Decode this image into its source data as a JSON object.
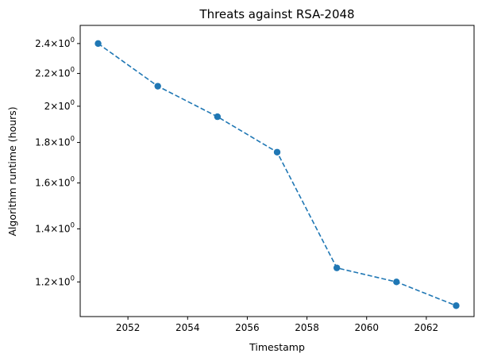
{
  "chart_data": {
    "type": "line",
    "title": "Threats against RSA-2048",
    "xlabel": "Timestamp",
    "ylabel": "Algorithm runtime (hours)",
    "y_scale": "log",
    "grid": false,
    "legend": "none",
    "series": [
      {
        "x": [
          2051,
          2053,
          2055,
          2057,
          2059,
          2061,
          2063
        ],
        "y": [
          2.4,
          2.12,
          1.94,
          1.75,
          1.25,
          1.2,
          1.12
        ],
        "color": "#1f77b4",
        "line_style": "dashed",
        "marker": "circle"
      }
    ],
    "xlim": [
      2050.4,
      2063.6
    ],
    "ylim": [
      1.085,
      2.53
    ],
    "x_ticks": [
      {
        "value": 2052,
        "label": "2052"
      },
      {
        "value": 2054,
        "label": "2054"
      },
      {
        "value": 2056,
        "label": "2056"
      },
      {
        "value": 2058,
        "label": "2058"
      },
      {
        "value": 2060,
        "label": "2060"
      },
      {
        "value": 2062,
        "label": "2062"
      }
    ],
    "y_ticks": [
      {
        "value": 1.2,
        "base": "1.2",
        "times": "×",
        "power_base": "10",
        "exponent": "0"
      },
      {
        "value": 1.4,
        "base": "1.4",
        "times": "×",
        "power_base": "10",
        "exponent": "0"
      },
      {
        "value": 1.6,
        "base": "1.6",
        "times": "×",
        "power_base": "10",
        "exponent": "0"
      },
      {
        "value": 1.8,
        "base": "1.8",
        "times": "×",
        "power_base": "10",
        "exponent": "0"
      },
      {
        "value": 2.0,
        "base": "2",
        "times": "×",
        "power_base": "10",
        "exponent": "0"
      },
      {
        "value": 2.2,
        "base": "2.2",
        "times": "×",
        "power_base": "10",
        "exponent": "0"
      },
      {
        "value": 2.4,
        "base": "2.4",
        "times": "×",
        "power_base": "10",
        "exponent": "0"
      }
    ]
  }
}
